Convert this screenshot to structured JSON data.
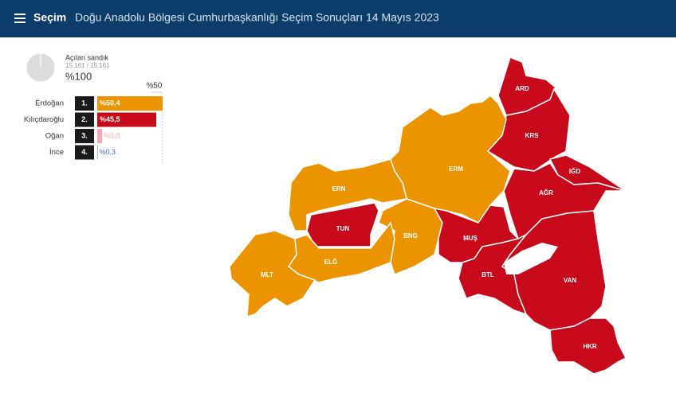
{
  "header": {
    "brand": "Seçim",
    "title": "Doğu Anadolu Bölgesi Cumhurbaşkanlığı Seçim Sonuçları 14 Mayıs 2023"
  },
  "summary": {
    "label": "Açılan sandık",
    "count": "15.161 / 15.161",
    "progress": {
      "value": 100,
      "label": "%100"
    }
  },
  "results": {
    "reference": {
      "value": 50,
      "label": "%50"
    },
    "candidates": [
      {
        "name": "Erdoğan",
        "rank": "1.",
        "value": 50.4,
        "value_label": "%50,4",
        "color": "#ec9300"
      },
      {
        "name": "Kılıçdaroğlu",
        "rank": "2.",
        "value": 45.5,
        "value_label": "%45,5",
        "color": "#c8091b"
      },
      {
        "name": "Oğan",
        "rank": "3.",
        "value": 3.8,
        "value_label": "%3,8",
        "color": "#f4aab0"
      },
      {
        "name": "İnce",
        "rank": "4.",
        "value": 0.3,
        "value_label": "%0,3",
        "color": "#3b6db3"
      }
    ]
  },
  "map": {
    "regions": [
      {
        "label": "ARD",
        "color": "#c8091b"
      },
      {
        "label": "KRS",
        "color": "#c8091b"
      },
      {
        "label": "IĞD",
        "color": "#c8091b"
      },
      {
        "label": "AĞR",
        "color": "#c8091b"
      },
      {
        "label": "ERM",
        "color": "#ec9300"
      },
      {
        "label": "ERN",
        "color": "#ec9300"
      },
      {
        "label": "TUN",
        "color": "#c8091b"
      },
      {
        "label": "BNG",
        "color": "#ec9300"
      },
      {
        "label": "MUŞ",
        "color": "#c8091b"
      },
      {
        "label": "ELĞ",
        "color": "#ec9300"
      },
      {
        "label": "MLT",
        "color": "#ec9300"
      },
      {
        "label": "BTL",
        "color": "#c8091b"
      },
      {
        "label": "VAN",
        "color": "#c8091b"
      },
      {
        "label": "HKR",
        "color": "#c8091b"
      }
    ]
  }
}
